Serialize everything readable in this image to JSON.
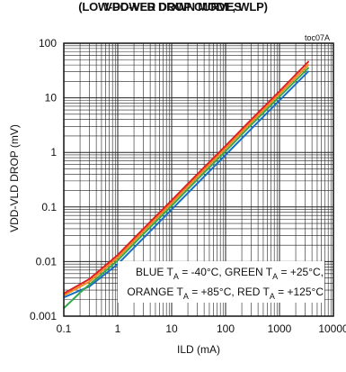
{
  "chart_data": {
    "type": "line",
    "title_line1": "VDD-VLD DROP CURVES",
    "title_line2": "(LOW-POWER DOWN MODE, WLP)",
    "figure_id": "toc07A",
    "xlabel": "ILD (mA)",
    "ylabel": "VDD-VLD DROP (mV)",
    "xscale": "log",
    "yscale": "log",
    "xlim": [
      0.1,
      1000
    ],
    "ylim": [
      0.001,
      100
    ],
    "x_ticks": [
      "0.1",
      "1",
      "10",
      "100",
      "1000",
      "10000"
    ],
    "x_tick_values": [
      0.1,
      1,
      10,
      100,
      1000,
      10000
    ],
    "y_ticks": [
      "100",
      "10",
      "1",
      "0.1",
      "0.01",
      "0.001"
    ],
    "y_tick_values": [
      100,
      10,
      1,
      0.1,
      0.01,
      0.001
    ],
    "grid": true,
    "legend_note": {
      "line1": [
        {
          "text": "BLUE T",
          "sub": "A",
          "after": " = -40°C, GREEN T"
        },
        {
          "text": "",
          "sub": "A",
          "after": " = +25°C,"
        }
      ],
      "line2": [
        {
          "text": "ORANGE T",
          "sub": "A",
          "after": " = +85°C, RED T"
        },
        {
          "text": "",
          "sub": "A",
          "after": " = +125°C"
        }
      ]
    },
    "series": [
      {
        "color": "#1a6fc4",
        "x": [
          0.1,
          0.3,
          1,
          3,
          10,
          30,
          100,
          300,
          1000,
          3500
        ],
        "y": [
          0.0022,
          0.0035,
          0.009,
          0.027,
          0.09,
          0.27,
          0.9,
          2.7,
          9,
          31
        ]
      },
      {
        "color": "#3aa64a",
        "x": [
          0.1,
          0.2,
          0.3,
          1,
          3,
          10,
          30,
          100,
          300,
          1000,
          3500
        ],
        "y": [
          0.0014,
          0.0027,
          0.0038,
          0.0105,
          0.032,
          0.105,
          0.32,
          1.05,
          3.2,
          10.5,
          36
        ]
      },
      {
        "color": "#f08a1c",
        "x": [
          0.1,
          0.3,
          1,
          3,
          10,
          30,
          100,
          300,
          1000,
          3500
        ],
        "y": [
          0.0024,
          0.0043,
          0.0118,
          0.036,
          0.118,
          0.36,
          1.18,
          3.6,
          11.8,
          41
        ]
      },
      {
        "color": "#e02020",
        "x": [
          0.1,
          0.3,
          1,
          3,
          10,
          30,
          100,
          300,
          1000,
          3500
        ],
        "y": [
          0.0026,
          0.0048,
          0.0132,
          0.04,
          0.132,
          0.4,
          1.32,
          4.0,
          13.2,
          47
        ]
      }
    ]
  }
}
